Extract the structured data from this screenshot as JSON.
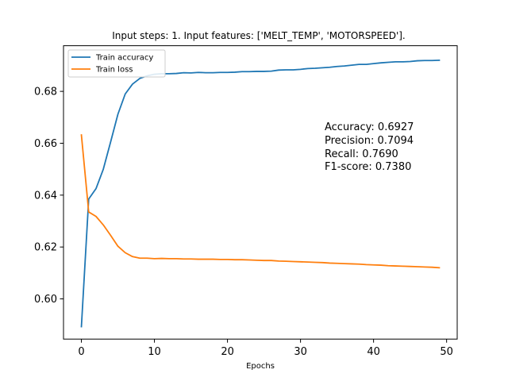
{
  "chart_data": {
    "type": "line",
    "title": "Input steps: 1. Input features: ['MELT_TEMP', 'MOTORSPEED'].",
    "xlabel": "Epochs",
    "ylabel": "",
    "xlim": [
      -2.45,
      51.45
    ],
    "ylim": [
      0.5845,
      0.6976
    ],
    "xticks": [
      0,
      10,
      20,
      30,
      40,
      50
    ],
    "yticks": [
      0.6,
      0.62,
      0.64,
      0.66,
      0.68
    ],
    "xtick_labels": [
      "0",
      "10",
      "20",
      "30",
      "40",
      "50"
    ],
    "ytick_labels": [
      "0.60",
      "0.62",
      "0.64",
      "0.66",
      "0.68"
    ],
    "grid": false,
    "legend_position": "top-left",
    "series": [
      {
        "name": "Train accuracy",
        "color": "#1f77b4",
        "x": [
          0,
          1,
          2,
          3,
          4,
          5,
          6,
          7,
          8,
          9,
          10,
          11,
          12,
          13,
          14,
          15,
          16,
          17,
          18,
          19,
          20,
          21,
          22,
          23,
          24,
          25,
          26,
          27,
          28,
          29,
          30,
          31,
          32,
          33,
          34,
          35,
          36,
          37,
          38,
          39,
          40,
          41,
          42,
          43,
          44,
          45,
          46,
          47,
          48,
          49
        ],
        "values": [
          0.5893,
          0.6385,
          0.6425,
          0.65,
          0.6605,
          0.6712,
          0.679,
          0.6828,
          0.685,
          0.686,
          0.6866,
          0.6868,
          0.6868,
          0.6869,
          0.6872,
          0.6871,
          0.6873,
          0.6872,
          0.6872,
          0.6873,
          0.6873,
          0.6874,
          0.6876,
          0.6876,
          0.6877,
          0.6877,
          0.6878,
          0.6882,
          0.6883,
          0.6883,
          0.6885,
          0.6888,
          0.6889,
          0.6891,
          0.6893,
          0.6896,
          0.6898,
          0.6901,
          0.6904,
          0.6904,
          0.6907,
          0.691,
          0.6912,
          0.6914,
          0.6914,
          0.6915,
          0.6918,
          0.6919,
          0.6919,
          0.692
        ]
      },
      {
        "name": "Train loss",
        "color": "#ff7f0e",
        "x": [
          0,
          1,
          2,
          3,
          4,
          5,
          6,
          7,
          8,
          9,
          10,
          11,
          12,
          13,
          14,
          15,
          16,
          17,
          18,
          19,
          20,
          21,
          22,
          23,
          24,
          25,
          26,
          27,
          28,
          29,
          30,
          31,
          32,
          33,
          34,
          35,
          36,
          37,
          38,
          39,
          40,
          41,
          42,
          43,
          44,
          45,
          46,
          47,
          48,
          49
        ],
        "values": [
          0.6632,
          0.6335,
          0.6318,
          0.6285,
          0.6245,
          0.6203,
          0.6178,
          0.6163,
          0.6157,
          0.6157,
          0.6155,
          0.6156,
          0.6155,
          0.6155,
          0.6154,
          0.6154,
          0.6153,
          0.6153,
          0.6153,
          0.6152,
          0.6152,
          0.6151,
          0.6151,
          0.615,
          0.6149,
          0.6148,
          0.6148,
          0.6146,
          0.6145,
          0.6144,
          0.6143,
          0.6142,
          0.6141,
          0.614,
          0.6138,
          0.6137,
          0.6136,
          0.6135,
          0.6134,
          0.6132,
          0.6131,
          0.613,
          0.6128,
          0.6127,
          0.6126,
          0.6125,
          0.6124,
          0.6123,
          0.6122,
          0.612
        ]
      }
    ],
    "annotations": [
      "Accuracy: 0.6927",
      "Precision: 0.7094",
      "Recall: 0.7690",
      "F1-score: 0.7380"
    ]
  }
}
